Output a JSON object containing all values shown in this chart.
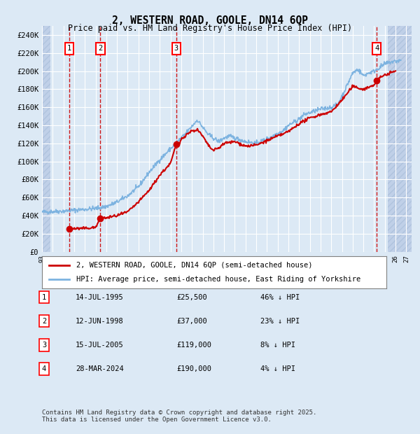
{
  "title": "2, WESTERN ROAD, GOOLE, DN14 6QP",
  "subtitle": "Price paid vs. HM Land Registry's House Price Index (HPI)",
  "title_fontsize": 11,
  "subtitle_fontsize": 9,
  "xlim": [
    1993.0,
    2027.5
  ],
  "ylim": [
    0,
    250000
  ],
  "yticks": [
    0,
    20000,
    40000,
    60000,
    80000,
    100000,
    120000,
    140000,
    160000,
    180000,
    200000,
    220000,
    240000
  ],
  "ytick_labels": [
    "£0",
    "£20K",
    "£40K",
    "£60K",
    "£80K",
    "£100K",
    "£120K",
    "£140K",
    "£160K",
    "£180K",
    "£200K",
    "£220K",
    "£240K"
  ],
  "background_color": "#dce9f5",
  "plot_bg_color": "#dce9f5",
  "hatch_color": "#c0d0e8",
  "grid_color": "#ffffff",
  "hpi_color": "#7db3e0",
  "price_color": "#cc0000",
  "dot_color": "#cc0000",
  "vline_color": "#cc0000",
  "purchases": [
    {
      "num": 1,
      "date_label": "14-JUL-1995",
      "year": 1995.54,
      "price": 25500,
      "pct": "46%",
      "dir": "↓"
    },
    {
      "num": 2,
      "date_label": "12-JUN-1998",
      "year": 1998.45,
      "price": 37000,
      "pct": "23%",
      "dir": "↓"
    },
    {
      "num": 3,
      "date_label": "15-JUL-2005",
      "year": 2005.54,
      "price": 119000,
      "pct": "8%",
      "dir": "↓"
    },
    {
      "num": 4,
      "date_label": "28-MAR-2024",
      "year": 2024.24,
      "price": 190000,
      "pct": "4%",
      "dir": "↓"
    }
  ],
  "legend_line1": "2, WESTERN ROAD, GOOLE, DN14 6QP (semi-detached house)",
  "legend_line2": "HPI: Average price, semi-detached house, East Riding of Yorkshire",
  "footer": "Contains HM Land Registry data © Crown copyright and database right 2025.\nThis data is licensed under the Open Government Licence v3.0.",
  "table_rows": [
    [
      "1",
      "14-JUL-1995",
      "£25,500",
      "46% ↓ HPI"
    ],
    [
      "2",
      "12-JUN-1998",
      "£37,000",
      "23% ↓ HPI"
    ],
    [
      "3",
      "15-JUL-2005",
      "£119,000",
      "8% ↓ HPI"
    ],
    [
      "4",
      "28-MAR-2024",
      "£190,000",
      "4% ↓ HPI"
    ]
  ],
  "hpi_anchors": [
    [
      1993.0,
      44000
    ],
    [
      1994.0,
      44500
    ],
    [
      1995.0,
      45000
    ],
    [
      1996.0,
      46000
    ],
    [
      1997.0,
      47000
    ],
    [
      1998.0,
      48000
    ],
    [
      1999.0,
      50000
    ],
    [
      2000.0,
      55000
    ],
    [
      2001.0,
      62000
    ],
    [
      2002.0,
      72000
    ],
    [
      2003.0,
      88000
    ],
    [
      2004.0,
      102000
    ],
    [
      2005.0,
      114000
    ],
    [
      2005.5,
      120000
    ],
    [
      2006.5,
      132000
    ],
    [
      2007.5,
      146000
    ],
    [
      2008.5,
      130000
    ],
    [
      2009.5,
      122000
    ],
    [
      2010.0,
      126000
    ],
    [
      2010.5,
      128000
    ],
    [
      2011.5,
      124000
    ],
    [
      2012.0,
      122000
    ],
    [
      2013.0,
      120000
    ],
    [
      2014.0,
      125000
    ],
    [
      2014.5,
      128000
    ],
    [
      2015.5,
      134000
    ],
    [
      2016.0,
      140000
    ],
    [
      2017.0,
      147000
    ],
    [
      2017.5,
      152000
    ],
    [
      2018.5,
      156000
    ],
    [
      2019.0,
      158000
    ],
    [
      2020.0,
      160000
    ],
    [
      2020.5,
      162000
    ],
    [
      2021.0,
      172000
    ],
    [
      2021.5,
      185000
    ],
    [
      2022.0,
      198000
    ],
    [
      2022.5,
      202000
    ],
    [
      2023.0,
      195000
    ],
    [
      2023.5,
      198000
    ],
    [
      2024.0,
      200000
    ],
    [
      2024.5,
      204000
    ],
    [
      2025.0,
      208000
    ],
    [
      2025.5,
      210000
    ],
    [
      2026.5,
      212000
    ]
  ],
  "price_anchors": [
    [
      1995.54,
      25500
    ],
    [
      1995.6,
      25500
    ],
    [
      1996.0,
      25500
    ],
    [
      1997.0,
      25800
    ],
    [
      1997.5,
      26500
    ],
    [
      1998.0,
      26800
    ],
    [
      1998.45,
      37000
    ],
    [
      1998.6,
      37000
    ],
    [
      1999.0,
      37500
    ],
    [
      2000.0,
      40000
    ],
    [
      2001.0,
      44000
    ],
    [
      2002.0,
      55000
    ],
    [
      2003.0,
      68000
    ],
    [
      2004.0,
      85000
    ],
    [
      2005.0,
      98000
    ],
    [
      2005.54,
      119000
    ],
    [
      2005.8,
      119000
    ],
    [
      2006.0,
      125000
    ],
    [
      2006.5,
      130000
    ],
    [
      2007.0,
      134000
    ],
    [
      2007.5,
      135000
    ],
    [
      2008.0,
      128000
    ],
    [
      2008.5,
      118000
    ],
    [
      2009.0,
      112000
    ],
    [
      2009.5,
      115000
    ],
    [
      2010.0,
      120000
    ],
    [
      2011.0,
      122000
    ],
    [
      2012.0,
      117000
    ],
    [
      2013.0,
      118000
    ],
    [
      2014.0,
      123000
    ],
    [
      2015.0,
      128000
    ],
    [
      2016.0,
      133000
    ],
    [
      2017.0,
      142000
    ],
    [
      2018.0,
      148000
    ],
    [
      2019.0,
      152000
    ],
    [
      2020.0,
      155000
    ],
    [
      2021.0,
      168000
    ],
    [
      2022.0,
      183000
    ],
    [
      2023.0,
      180000
    ],
    [
      2023.5,
      182000
    ],
    [
      2024.0,
      185000
    ],
    [
      2024.24,
      190000
    ],
    [
      2024.5,
      192000
    ],
    [
      2025.0,
      196000
    ],
    [
      2026.0,
      200000
    ]
  ]
}
